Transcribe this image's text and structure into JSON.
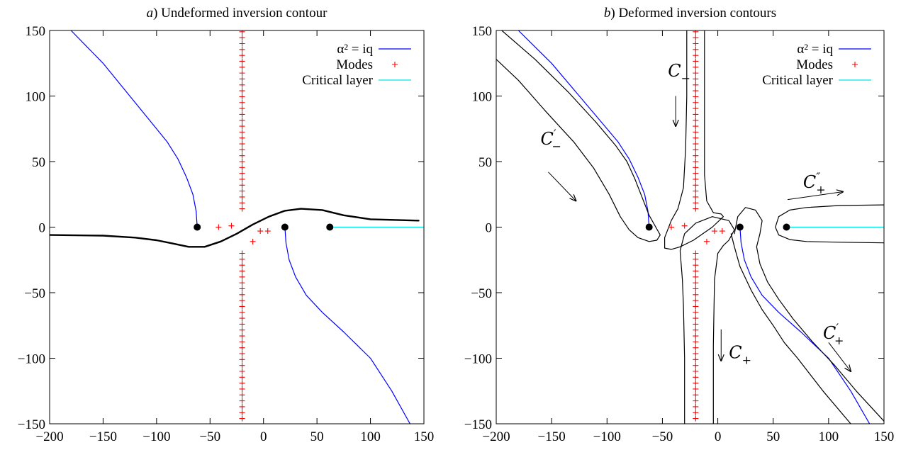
{
  "chart_data": [
    {
      "type": "line",
      "title_prefix": "a",
      "title": ") Undeformed inversion contour",
      "xlim": [
        -200,
        150
      ],
      "ylim": [
        -150,
        150
      ],
      "xticks": [
        -200,
        -150,
        -100,
        -50,
        0,
        50,
        100,
        150
      ],
      "yticks": [
        -150,
        -100,
        -50,
        0,
        50,
        100,
        150
      ],
      "legend": {
        "placement": "top-right",
        "entries": [
          {
            "label": "α² = iq",
            "color": "#0000ff",
            "kind": "line"
          },
          {
            "label": "Modes",
            "color": "#ff0000",
            "kind": "plus"
          },
          {
            "label": "Critical layer",
            "color": "#00e5e5",
            "kind": "line"
          }
        ]
      },
      "series": [
        {
          "role": "alpha_upper",
          "color": "#0000ff",
          "x": [
            -62,
            -63,
            -66,
            -72,
            -80,
            -90,
            -105,
            -125,
            -150,
            -180
          ],
          "y": [
            0,
            12,
            25,
            38,
            52,
            65,
            80,
            100,
            125,
            150
          ]
        },
        {
          "role": "alpha_lower",
          "color": "#0000ff",
          "x": [
            20,
            21,
            24,
            30,
            40,
            55,
            75,
            100,
            120,
            137
          ],
          "y": [
            0,
            -12,
            -25,
            -38,
            -52,
            -65,
            -80,
            -100,
            -125,
            -150
          ]
        },
        {
          "role": "critical_layer",
          "color": "#00e5e5",
          "x": [
            62,
            150
          ],
          "y": [
            0,
            0
          ]
        },
        {
          "role": "contour",
          "color": "#000000",
          "x": [
            -200,
            -150,
            -120,
            -100,
            -85,
            -70,
            -55,
            -40,
            -25,
            -10,
            5,
            20,
            35,
            55,
            75,
            100,
            145
          ],
          "y": [
            -6,
            -6.5,
            -8,
            -10,
            -12.5,
            -15,
            -15,
            -11,
            -5,
            2,
            8,
            12.5,
            14,
            13,
            9,
            6,
            5
          ]
        }
      ],
      "modes": {
        "color": "#ff0000",
        "upper_column": {
          "x": -20,
          "y_from": 14,
          "y_to": 150,
          "step": 4.5
        },
        "lower_column": {
          "x": -20,
          "y_from": -20,
          "y_to": -150,
          "step": 4.5
        },
        "extra": [
          [
            -42,
            0
          ],
          [
            -30,
            1
          ],
          [
            -10,
            -11
          ],
          [
            -3,
            -3
          ],
          [
            4,
            -3
          ]
        ]
      },
      "branch_points": [
        [
          -62,
          0
        ],
        [
          20,
          0
        ],
        [
          62,
          0
        ]
      ]
    },
    {
      "type": "line",
      "title_prefix": "b",
      "title": ") Deformed inversion contours",
      "xlim": [
        -200,
        150
      ],
      "ylim": [
        -150,
        150
      ],
      "xticks": [
        -200,
        -150,
        -100,
        -50,
        0,
        50,
        100,
        150
      ],
      "yticks": [
        -150,
        -100,
        -50,
        0,
        50,
        100,
        150
      ],
      "legend": {
        "placement": "top-right",
        "entries": [
          {
            "label": "α² = iq",
            "color": "#0000ff",
            "kind": "line"
          },
          {
            "label": "Modes",
            "color": "#ff0000",
            "kind": "plus"
          },
          {
            "label": "Critical layer",
            "color": "#00e5e5",
            "kind": "line"
          }
        ]
      },
      "series": [
        {
          "role": "alpha_upper",
          "color": "#0000ff",
          "x": [
            -62,
            -63,
            -66,
            -72,
            -80,
            -90,
            -105,
            -125,
            -150,
            -180
          ],
          "y": [
            0,
            12,
            25,
            38,
            52,
            65,
            80,
            100,
            125,
            150
          ]
        },
        {
          "role": "alpha_lower",
          "color": "#0000ff",
          "x": [
            20,
            21,
            24,
            30,
            40,
            55,
            75,
            100,
            120,
            137
          ],
          "y": [
            0,
            -12,
            -25,
            -38,
            -52,
            -65,
            -80,
            -100,
            -125,
            -150
          ]
        },
        {
          "role": "critical_layer",
          "color": "#00e5e5",
          "x": [
            62,
            150
          ],
          "y": [
            0,
            0
          ]
        },
        {
          "role": "C_minus_prime",
          "color": "#000000",
          "x": [
            -195,
            -165,
            -135,
            -110,
            -92,
            -82,
            -75,
            -68,
            -62,
            -56,
            -52,
            -55,
            -62,
            -72,
            -80,
            -88,
            -98,
            -112,
            -130,
            -155,
            -180,
            -200
          ],
          "y": [
            150,
            128,
            103,
            80,
            62,
            50,
            37,
            22,
            9,
            0,
            -6,
            -10,
            -11,
            -8,
            -2,
            8,
            25,
            45,
            65,
            88,
            112,
            128
          ]
        },
        {
          "role": "C_minus",
          "color": "#000000",
          "x": [
            -28,
            -28,
            -29,
            -31,
            -36,
            -42,
            -48,
            -48,
            -42,
            -34,
            -22,
            -5,
            5,
            3,
            -4,
            -10,
            -12,
            -12,
            -12
          ],
          "y": [
            150,
            100,
            60,
            30,
            14,
            5,
            -8,
            -16,
            -17,
            -15,
            -10,
            0,
            8,
            10,
            11,
            20,
            40,
            90,
            150
          ]
        },
        {
          "role": "C_plus",
          "color": "#000000",
          "x": [
            -30,
            -30,
            -31,
            -32,
            -34,
            -30,
            -20,
            -5,
            10,
            15,
            10,
            5,
            0,
            -3,
            -4,
            -4
          ],
          "y": [
            -150,
            -100,
            -60,
            -40,
            -18,
            -5,
            3,
            8,
            5,
            -2,
            -10,
            -14,
            -20,
            -40,
            -90,
            -150
          ]
        },
        {
          "role": "C_plus_prime_inner",
          "color": "#000000",
          "x": [
            12,
            15,
            20,
            30,
            40,
            50,
            60,
            72,
            95,
            120
          ],
          "y": [
            -5,
            -15,
            -30,
            -48,
            -63,
            -75,
            -88,
            -100,
            -125,
            -150
          ]
        },
        {
          "role": "C_plus_prime_outer",
          "color": "#000000",
          "x": [
            15,
            18,
            25,
            34,
            40,
            38,
            35,
            38,
            45,
            55,
            68,
            85,
            105,
            125,
            150
          ],
          "y": [
            -5,
            8,
            15,
            13,
            5,
            -5,
            -15,
            -28,
            -42,
            -55,
            -70,
            -87,
            -105,
            -125,
            -148
          ]
        },
        {
          "role": "C_plus_double_prime",
          "color": "#000000",
          "x": [
            150,
            110,
            80,
            65,
            55,
            52,
            55,
            65,
            80,
            110,
            150
          ],
          "y": [
            17,
            16.5,
            15,
            13,
            8,
            0,
            -6,
            -9.5,
            -11,
            -11.5,
            -12
          ]
        }
      ],
      "modes": {
        "color": "#ff0000",
        "upper_column": {
          "x": -20,
          "y_from": 14,
          "y_to": 150,
          "step": 4.5
        },
        "lower_column": {
          "x": -20,
          "y_from": -20,
          "y_to": -150,
          "step": 4.5
        },
        "extra": [
          [
            -42,
            0
          ],
          [
            -30,
            1
          ],
          [
            -10,
            -11
          ],
          [
            -3,
            -3
          ],
          [
            4,
            -3
          ]
        ]
      },
      "branch_points": [
        [
          -62,
          0
        ],
        [
          20,
          0
        ],
        [
          62,
          0
        ]
      ],
      "annotations": [
        {
          "name": "C-",
          "sym": "C",
          "sub": "−",
          "sup": "",
          "x": -45,
          "y": 115
        },
        {
          "name": "C-prime",
          "sym": "C",
          "sub": "−",
          "sup": "′",
          "x": -160,
          "y": 63
        },
        {
          "name": "C+",
          "sym": "C",
          "sub": "+",
          "sup": "",
          "x": 10,
          "y": -100
        },
        {
          "name": "C+prime",
          "sym": "C",
          "sub": "+",
          "sup": "′",
          "x": 95,
          "y": -85
        },
        {
          "name": "C+doubleprime",
          "sym": "C",
          "sub": "+",
          "sup": "″",
          "x": 77,
          "y": 30
        }
      ],
      "arrows": [
        {
          "x1": -38,
          "y1": 100,
          "x2": -38,
          "y2": 77
        },
        {
          "x1": -153,
          "y1": 42,
          "x2": -128,
          "y2": 20
        },
        {
          "x1": 3,
          "y1": -78,
          "x2": 3,
          "y2": -102
        },
        {
          "x1": 100,
          "y1": -88,
          "x2": 120,
          "y2": -110
        },
        {
          "x1": 63,
          "y1": 21,
          "x2": 113,
          "y2": 27
        }
      ]
    }
  ]
}
